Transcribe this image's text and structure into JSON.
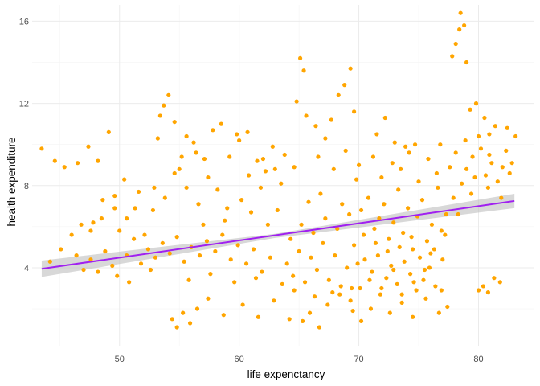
{
  "chart_data": {
    "type": "scatter",
    "title": "",
    "xlabel": "life expenctancy",
    "ylabel": "health expenditure",
    "xlim": [
      42.7,
      84.6
    ],
    "ylim": [
      0.2,
      16.8
    ],
    "x_ticks": [
      50,
      60,
      70,
      80
    ],
    "y_ticks": [
      4,
      8,
      12,
      16
    ],
    "grid": true,
    "legend": "none",
    "point_color": "#FFA500",
    "trend_line_color": "#A020F0",
    "confidence_band_color": "#bebebe",
    "trend_line": {
      "x": [
        43.5,
        83.0
      ],
      "y": [
        3.95,
        7.25
      ]
    },
    "confidence_band": {
      "x": [
        43.5,
        63,
        83.0
      ],
      "lower": [
        3.55,
        5.45,
        6.9
      ],
      "upper": [
        4.35,
        5.65,
        7.6
      ]
    },
    "points": [
      [
        43.5,
        9.8
      ],
      [
        44.6,
        9.2
      ],
      [
        45.4,
        8.9
      ],
      [
        46.5,
        9.1
      ],
      [
        47.4,
        9.9
      ],
      [
        48.2,
        9.2
      ],
      [
        49.1,
        10.6
      ],
      [
        44.2,
        4.3
      ],
      [
        45.1,
        4.9
      ],
      [
        46.0,
        5.6
      ],
      [
        46.8,
        6.1
      ],
      [
        47.6,
        5.8
      ],
      [
        48.5,
        6.4
      ],
      [
        49.6,
        7.5
      ],
      [
        50.4,
        8.3
      ],
      [
        51.3,
        6.9
      ],
      [
        52.1,
        5.6
      ],
      [
        52.9,
        7.9
      ],
      [
        53.4,
        11.4
      ],
      [
        53.7,
        11.9
      ],
      [
        54.1,
        12.4
      ],
      [
        54.6,
        11.1
      ],
      [
        55.0,
        8.8
      ],
      [
        55.6,
        10.4
      ],
      [
        56.4,
        9.6
      ],
      [
        57.1,
        9.3
      ],
      [
        57.8,
        10.7
      ],
      [
        58.5,
        11.0
      ],
      [
        59.2,
        9.4
      ],
      [
        60.0,
        10.2
      ],
      [
        60.7,
        10.6
      ],
      [
        61.5,
        9.2
      ],
      [
        62.2,
        8.7
      ],
      [
        62.8,
        9.9
      ],
      [
        63.5,
        8.1
      ],
      [
        54.4,
        1.5
      ],
      [
        54.8,
        1.1
      ],
      [
        55.3,
        1.8
      ],
      [
        55.9,
        1.3
      ],
      [
        56.5,
        2.0
      ],
      [
        57.4,
        2.5
      ],
      [
        58.7,
        1.7
      ],
      [
        60.3,
        2.2
      ],
      [
        61.6,
        1.6
      ],
      [
        62.9,
        2.4
      ],
      [
        64.2,
        1.5
      ],
      [
        65.1,
        14.2
      ],
      [
        65.4,
        13.6
      ],
      [
        64.8,
        12.1
      ],
      [
        65.6,
        11.4
      ],
      [
        66.6,
        9.4
      ],
      [
        67.2,
        10.3
      ],
      [
        67.7,
        11.2
      ],
      [
        68.3,
        12.4
      ],
      [
        68.8,
        12.9
      ],
      [
        69.3,
        13.7
      ],
      [
        69.6,
        11.6
      ],
      [
        65.3,
        1.4
      ],
      [
        65.9,
        1.8
      ],
      [
        66.7,
        1.1
      ],
      [
        67.4,
        2.2
      ],
      [
        68.4,
        2.7
      ],
      [
        69.5,
        1.9
      ],
      [
        70.2,
        1.4
      ],
      [
        71.0,
        2.0
      ],
      [
        71.8,
        2.7
      ],
      [
        72.6,
        1.8
      ],
      [
        73.6,
        2.3
      ],
      [
        74.5,
        1.6
      ],
      [
        75.6,
        2.5
      ],
      [
        76.7,
        1.8
      ],
      [
        77.4,
        2.1
      ],
      [
        76.9,
        2.9
      ],
      [
        77.8,
        14.3
      ],
      [
        78.1,
        14.9
      ],
      [
        78.4,
        15.6
      ],
      [
        78.5,
        16.4
      ],
      [
        78.8,
        15.8
      ],
      [
        79.0,
        14.0
      ],
      [
        80.0,
        2.9
      ],
      [
        80.4,
        3.1
      ],
      [
        80.8,
        2.8
      ],
      [
        81.3,
        3.5
      ],
      [
        81.8,
        3.3
      ],
      [
        82.4,
        10.8
      ],
      [
        82.8,
        9.1
      ],
      [
        83.1,
        10.4
      ],
      [
        79.3,
        11.7
      ],
      [
        79.8,
        12.0
      ],
      [
        80.5,
        11.3
      ],
      [
        80.9,
        10.5
      ],
      [
        81.4,
        10.9
      ],
      [
        79.0,
        8.8
      ],
      [
        79.5,
        9.4
      ],
      [
        80.2,
        9.8
      ],
      [
        80.6,
        8.5
      ],
      [
        81.1,
        9.1
      ],
      [
        81.6,
        8.2
      ],
      [
        82.0,
        8.9
      ],
      [
        78.6,
        8.1
      ],
      [
        79.4,
        7.6
      ],
      [
        80.8,
        7.9
      ],
      [
        81.9,
        7.4
      ],
      [
        82.6,
        8.6
      ],
      [
        78.1,
        9.6
      ],
      [
        78.9,
        10.2
      ],
      [
        80.0,
        10.4
      ],
      [
        82.3,
        9.7
      ],
      [
        79.7,
        8.4
      ],
      [
        80.9,
        9.5
      ],
      [
        70.2,
        6.8
      ],
      [
        70.8,
        7.4
      ],
      [
        71.3,
        5.9
      ],
      [
        71.7,
        6.4
      ],
      [
        72.1,
        7.1
      ],
      [
        72.5,
        5.4
      ],
      [
        72.9,
        6.2
      ],
      [
        73.3,
        7.8
      ],
      [
        73.7,
        5.7
      ],
      [
        74.1,
        6.9
      ],
      [
        74.5,
        4.9
      ],
      [
        74.9,
        6.5
      ],
      [
        75.3,
        7.3
      ],
      [
        75.7,
        5.3
      ],
      [
        76.1,
        6.1
      ],
      [
        76.5,
        8.6
      ],
      [
        76.9,
        5.8
      ],
      [
        77.3,
        6.6
      ],
      [
        70.5,
        4.4
      ],
      [
        71.1,
        3.8
      ],
      [
        71.6,
        4.6
      ],
      [
        72.3,
        3.5
      ],
      [
        72.7,
        4.1
      ],
      [
        73.2,
        3.2
      ],
      [
        73.8,
        4.3
      ],
      [
        74.3,
        3.7
      ],
      [
        74.8,
        2.9
      ],
      [
        75.4,
        3.4
      ],
      [
        75.9,
        4.0
      ],
      [
        76.4,
        3.1
      ],
      [
        69.6,
        5.1
      ],
      [
        69.9,
        4.2
      ],
      [
        70.4,
        5.6
      ],
      [
        71.4,
        5.2
      ],
      [
        72.4,
        4.8
      ],
      [
        73.4,
        5.0
      ],
      [
        74.4,
        5.5
      ],
      [
        75.1,
        4.5
      ],
      [
        76.0,
        4.7
      ],
      [
        77.0,
        4.4
      ],
      [
        71.9,
        8.4
      ],
      [
        72.8,
        9.1
      ],
      [
        73.5,
        8.8
      ],
      [
        74.2,
        9.6
      ],
      [
        75.0,
        8.2
      ],
      [
        75.8,
        9.3
      ],
      [
        76.6,
        7.9
      ],
      [
        73.0,
        10.1
      ],
      [
        74.7,
        10.0
      ],
      [
        71.2,
        9.4
      ],
      [
        64.0,
        4.2
      ],
      [
        64.5,
        3.6
      ],
      [
        65.0,
        4.8
      ],
      [
        65.5,
        3.3
      ],
      [
        66.0,
        4.5
      ],
      [
        66.5,
        3.9
      ],
      [
        67.0,
        5.2
      ],
      [
        67.5,
        3.4
      ],
      [
        68.0,
        4.6
      ],
      [
        68.5,
        3.1
      ],
      [
        69.0,
        4.0
      ],
      [
        64.3,
        5.4
      ],
      [
        65.2,
        6.1
      ],
      [
        66.2,
        5.7
      ],
      [
        67.2,
        6.4
      ],
      [
        68.2,
        5.9
      ],
      [
        69.2,
        6.6
      ],
      [
        63.6,
        3.2
      ],
      [
        64.6,
        2.9
      ],
      [
        66.3,
        2.6
      ],
      [
        67.8,
        2.8
      ],
      [
        69.4,
        3.0
      ],
      [
        65.8,
        7.2
      ],
      [
        66.8,
        7.6
      ],
      [
        68.6,
        7.1
      ],
      [
        63.2,
        6.8
      ],
      [
        62.6,
        4.5
      ],
      [
        61.9,
        3.8
      ],
      [
        61.2,
        4.9
      ],
      [
        60.6,
        4.2
      ],
      [
        59.9,
        5.1
      ],
      [
        59.3,
        4.4
      ],
      [
        58.6,
        5.6
      ],
      [
        58.0,
        4.8
      ],
      [
        57.3,
        5.3
      ],
      [
        56.7,
        4.6
      ],
      [
        56.0,
        5.0
      ],
      [
        55.4,
        4.3
      ],
      [
        54.8,
        5.5
      ],
      [
        54.2,
        4.7
      ],
      [
        53.6,
        5.2
      ],
      [
        53.0,
        4.5
      ],
      [
        52.4,
        4.9
      ],
      [
        51.8,
        4.2
      ],
      [
        51.2,
        5.4
      ],
      [
        50.6,
        4.6
      ],
      [
        50.0,
        5.8
      ],
      [
        49.4,
        4.1
      ],
      [
        48.8,
        4.8
      ],
      [
        48.2,
        3.8
      ],
      [
        47.6,
        4.4
      ],
      [
        47.0,
        3.9
      ],
      [
        46.4,
        4.6
      ],
      [
        49.8,
        3.6
      ],
      [
        50.8,
        3.3
      ],
      [
        52.6,
        3.9
      ],
      [
        55.8,
        3.4
      ],
      [
        57.6,
        3.7
      ],
      [
        59.6,
        3.3
      ],
      [
        61.4,
        3.5
      ],
      [
        62.4,
        6.1
      ],
      [
        61.0,
        6.7
      ],
      [
        60.2,
        7.3
      ],
      [
        59.0,
        6.9
      ],
      [
        58.2,
        7.8
      ],
      [
        57.4,
        8.4
      ],
      [
        56.6,
        7.1
      ],
      [
        55.6,
        7.9
      ],
      [
        54.6,
        8.6
      ],
      [
        53.8,
        7.4
      ],
      [
        52.8,
        6.8
      ],
      [
        51.6,
        7.7
      ],
      [
        50.6,
        6.4
      ],
      [
        49.6,
        6.9
      ],
      [
        48.6,
        7.3
      ],
      [
        47.8,
        6.2
      ],
      [
        57.0,
        6.1
      ],
      [
        58.8,
        6.3
      ],
      [
        60.8,
        8.5
      ],
      [
        62.0,
        9.3
      ],
      [
        63.0,
        8.8
      ],
      [
        55.2,
        9.4
      ],
      [
        56.2,
        10.1
      ],
      [
        59.8,
        10.5
      ],
      [
        61.8,
        7.9
      ],
      [
        53.2,
        10.3
      ],
      [
        70.0,
        9.0
      ],
      [
        71.5,
        10.5
      ],
      [
        72.2,
        11.3
      ],
      [
        73.9,
        9.9
      ],
      [
        67.9,
        8.8
      ],
      [
        68.9,
        9.7
      ],
      [
        66.4,
        10.9
      ],
      [
        69.8,
        8.3
      ],
      [
        64.6,
        8.9
      ],
      [
        63.8,
        9.5
      ],
      [
        76.8,
        10.0
      ],
      [
        77.6,
        8.9
      ],
      [
        77.9,
        7.4
      ],
      [
        78.3,
        6.6
      ],
      [
        77.2,
        5.6
      ],
      [
        76.3,
        4.9
      ],
      [
        75.5,
        3.9
      ],
      [
        74.6,
        3.3
      ],
      [
        73.6,
        2.7
      ],
      [
        72.9,
        3.9
      ],
      [
        71.9,
        3.0
      ],
      [
        70.9,
        3.4
      ],
      [
        70.1,
        3.0
      ],
      [
        69.3,
        2.4
      ]
    ]
  }
}
